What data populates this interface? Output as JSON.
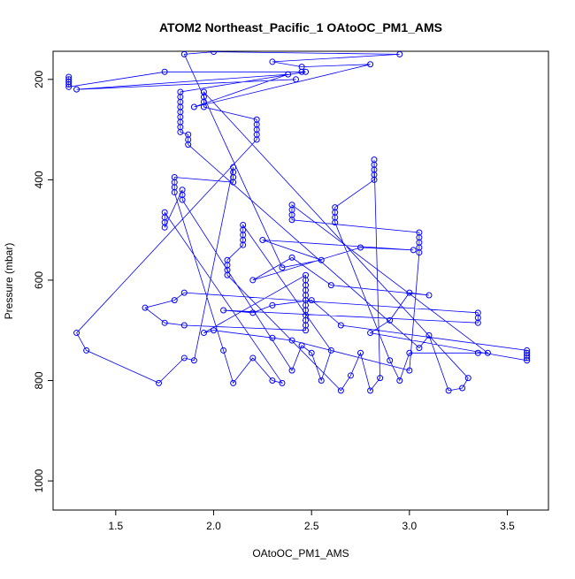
{
  "chart_data": {
    "type": "scatter",
    "title": "ATOM2 Northeast_Pacific_1 OAtoOC_PM1_AMS",
    "x_label": "OAtoOC_PM1_AMS",
    "y_label": "Pressure (mbar)",
    "color": "#0000ff",
    "connect": true,
    "x": [
      1.26,
      1.26,
      1.26,
      1.26,
      1.26,
      1.75,
      2.45,
      2.47,
      1.83,
      1.83,
      1.83,
      1.83,
      1.83,
      1.83,
      1.83,
      1.83,
      1.83,
      1.87,
      1.87,
      1.87,
      3.05,
      3.1,
      3.2,
      3.27,
      3.3,
      1.95,
      1.95,
      1.95,
      1.95,
      2.22,
      2.22,
      2.22,
      2.22,
      2.22,
      1.3,
      1.35,
      1.72,
      1.85,
      1.9,
      2.1,
      2.1,
      2.1,
      2.1,
      1.8,
      1.8,
      1.8,
      1.8,
      2.05,
      2.1,
      2.2,
      2.3,
      2.35,
      1.75,
      1.75,
      1.75,
      1.75,
      1.84,
      1.84,
      1.84,
      2.4,
      2.45,
      2.5,
      2.55,
      2.6,
      2.15,
      2.15,
      2.15,
      2.15,
      2.15,
      2.07,
      2.07,
      2.07,
      2.07,
      2.65,
      2.7,
      2.75,
      2.8,
      2.85,
      2.82,
      2.82,
      2.82,
      2.82,
      2.82,
      2.62,
      2.62,
      2.62,
      2.62,
      2.9,
      2.95,
      3.0,
      3.35,
      3.4,
      2.4,
      2.4,
      2.4,
      2.4,
      3.05,
      3.05,
      3.05,
      3.05,
      3.05,
      3.0,
      2.4,
      2.3,
      2.0,
      1.95,
      2.47,
      2.47,
      2.47,
      2.47,
      2.47,
      2.47,
      2.47,
      2.47,
      2.47,
      2.47,
      2.47,
      2.47,
      1.85,
      1.75,
      1.65,
      1.8,
      1.85,
      3.35,
      3.35,
      3.35,
      2.05,
      2.2,
      2.3,
      2.5,
      2.65,
      3.6,
      3.6,
      3.6,
      3.6,
      3.6,
      2.8,
      2.9,
      3.0,
      3.1,
      2.6,
      2.4,
      2.2,
      2.75,
      3.02,
      2.25,
      2.55,
      2.35,
      1.85,
      2.0,
      2.95,
      2.3,
      2.45,
      2.8,
      1.9,
      2.38,
      1.3,
      2.42
    ],
    "values": [
      195,
      200,
      205,
      210,
      215,
      185,
      185,
      185,
      225,
      235,
      245,
      255,
      265,
      275,
      285,
      295,
      305,
      310,
      320,
      330,
      735,
      710,
      820,
      815,
      795,
      225,
      235,
      245,
      255,
      280,
      290,
      300,
      310,
      320,
      705,
      740,
      805,
      755,
      760,
      375,
      385,
      395,
      405,
      395,
      405,
      415,
      425,
      740,
      805,
      755,
      800,
      805,
      465,
      475,
      485,
      495,
      420,
      430,
      440,
      780,
      730,
      745,
      800,
      740,
      490,
      500,
      510,
      520,
      530,
      560,
      570,
      580,
      590,
      820,
      790,
      745,
      820,
      795,
      360,
      370,
      380,
      390,
      400,
      455,
      465,
      475,
      485,
      760,
      800,
      745,
      745,
      745,
      450,
      460,
      470,
      480,
      505,
      515,
      525,
      535,
      545,
      780,
      720,
      715,
      700,
      705,
      590,
      600,
      610,
      620,
      630,
      640,
      650,
      660,
      670,
      680,
      690,
      700,
      690,
      685,
      655,
      640,
      625,
      665,
      675,
      685,
      660,
      665,
      650,
      640,
      690,
      740,
      745,
      750,
      755,
      760,
      705,
      680,
      625,
      630,
      610,
      555,
      600,
      535,
      540,
      520,
      560,
      575,
      150,
      145,
      150,
      165,
      175,
      170,
      255,
      190,
      220,
      200
    ],
    "xlim": [
      1.18,
      3.71
    ],
    "ylim": [
      1058,
      144
    ],
    "xticks": [
      1.5,
      {
        "value": 2,
        "label": "2.0"
      },
      2.5,
      {
        "value": 3,
        "label": "3.0"
      },
      3.5
    ],
    "yticks": [
      200,
      400,
      600,
      800,
      1000
    ]
  }
}
